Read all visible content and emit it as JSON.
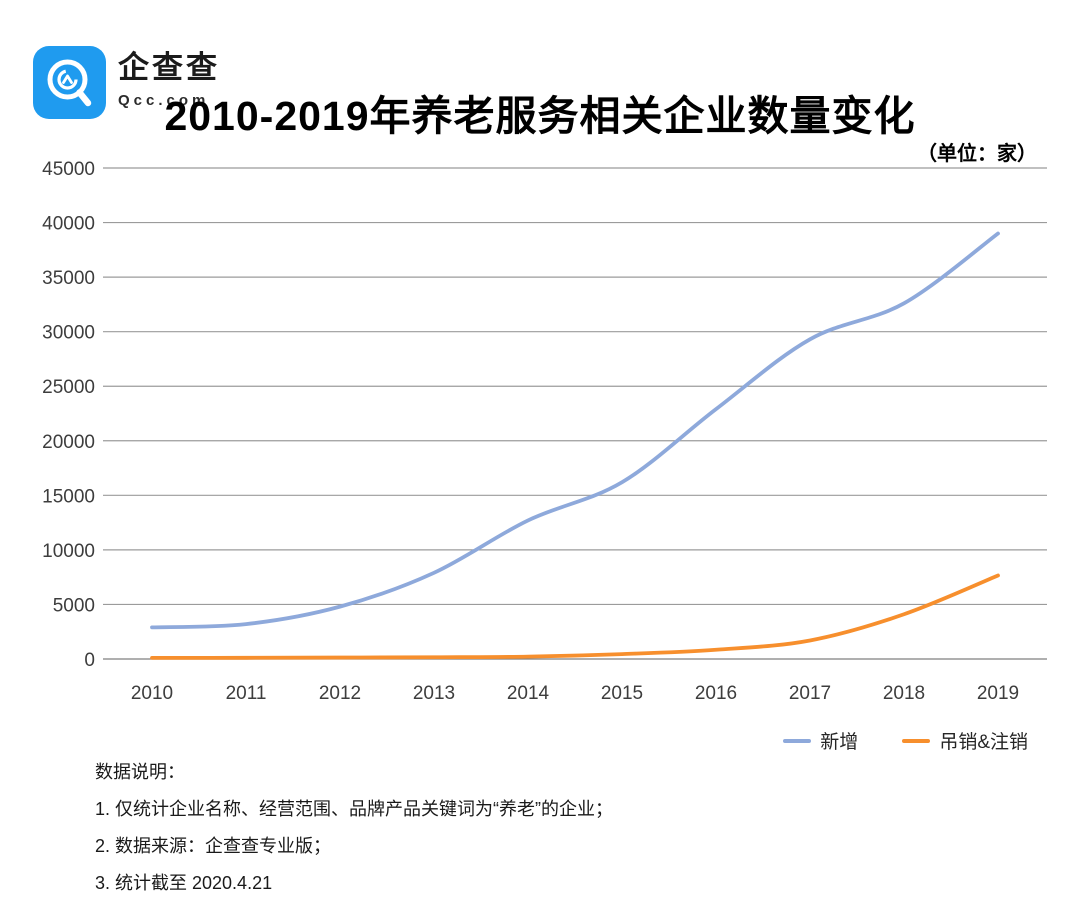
{
  "header": {
    "brand": {
      "name": "企查查",
      "domain": "Qcc.com",
      "logo_color": "#1f9bef"
    },
    "title": "2010-2019年养老服务相关企业数量变化",
    "unit": "（单位：家）"
  },
  "chart_data": {
    "type": "line",
    "title": "2010-2019年养老服务相关企业数量变化",
    "unit": "家",
    "x": [
      "2010",
      "2011",
      "2012",
      "2013",
      "2014",
      "2015",
      "2016",
      "2017",
      "2018",
      "2019"
    ],
    "series": [
      {
        "name": "新增",
        "color": "#8EA9DB",
        "values": [
          2900,
          3200,
          4800,
          7900,
          12700,
          16200,
          22900,
          29300,
          32600,
          39000
        ]
      },
      {
        "name": "吊销&注销",
        "color": "#F78F2D",
        "values": [
          100,
          110,
          130,
          160,
          220,
          450,
          850,
          1700,
          4100,
          7650
        ]
      }
    ],
    "ylim": [
      0,
      45000
    ],
    "ytick_step": 5000,
    "yticks": [
      0,
      5000,
      10000,
      15000,
      20000,
      25000,
      30000,
      35000,
      40000,
      45000
    ],
    "grid": "horizontal",
    "legend_position": "bottom-right",
    "gridline_color": "#9b9b9b",
    "baseline_color": "#7f7f7f",
    "axis_label_color": "#3d3d3d"
  },
  "footer": {
    "heading": "数据说明：",
    "notes": [
      "1. 仅统计企业名称、经营范围、品牌产品关键词为“养老”的企业；",
      "2. 数据来源：企查查专业版；",
      "3. 统计截至 2020.4.21"
    ]
  }
}
